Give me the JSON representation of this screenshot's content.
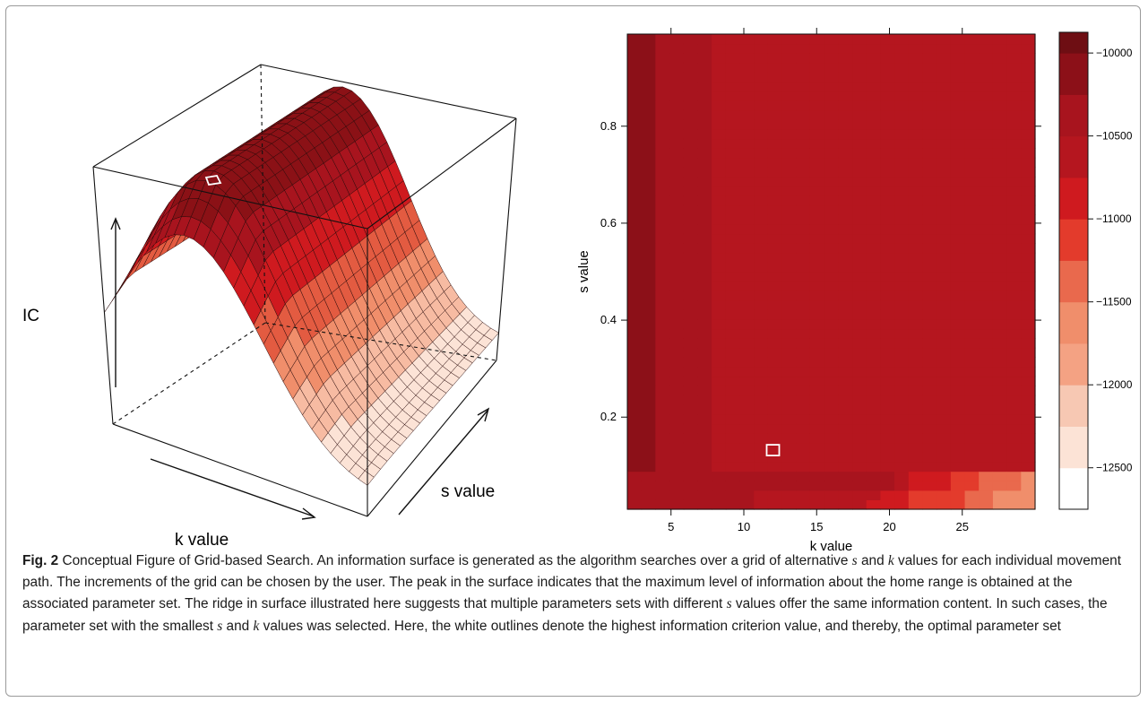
{
  "figure": {
    "label": "Fig. 2",
    "caption_title": "Conceptual Figure of Grid-based Search.",
    "caption_parts": [
      "An information surface is generated as the algorithm searches over a grid of alternative ",
      "s",
      " and ",
      "k",
      " values for each individual movement path. The increments of the grid can be chosen by the user. The peak in the surface indicates that the maximum level of information about the home range is obtained at the associated parameter set. The ridge in surface illustrated here suggests that multiple parameters sets with different ",
      "s",
      " values offer the same information content. In such cases, the parameter set with the smallest ",
      "s",
      " and ",
      "k",
      " values was selected. Here, the white outlines denote the highest information criterion value, and thereby, the optimal parameter set"
    ]
  },
  "surface_plot": {
    "z_label": "IC",
    "x_label": "k value",
    "y_label": "s value",
    "colors": [
      "#fce3d6",
      "#f7bba2",
      "#f08e6b",
      "#e35b41",
      "#cf1a1f",
      "#a8141e",
      "#8b1116"
    ]
  },
  "chart_data": {
    "type": "heatmap",
    "title": "",
    "xlabel": "k value",
    "ylabel": "s value",
    "xlim": [
      2,
      30
    ],
    "ylim": [
      0.01,
      0.99
    ],
    "x_ticks": [
      5,
      10,
      15,
      20,
      25
    ],
    "y_ticks": [
      0.2,
      0.4,
      0.6,
      0.8
    ],
    "x_tick_labels": [
      "5",
      "10",
      "15",
      "20",
      "25"
    ],
    "y_tick_labels": [
      "0.2",
      "0.4",
      "0.6",
      "0.8"
    ],
    "grid": false,
    "optimum": {
      "k": 12,
      "s": 0.13
    },
    "colorbar": {
      "levels": [
        -12750,
        -12500,
        -12250,
        -12000,
        -11750,
        -11500,
        -11250,
        -11000,
        -10750,
        -10500,
        -10250,
        -10000,
        -9875
      ],
      "colors": [
        "#ffffff",
        "#fce3d6",
        "#f7c8b3",
        "#f4a283",
        "#f08e6b",
        "#e9694d",
        "#e33b2c",
        "#cf1a1f",
        "#b5161f",
        "#a8141e",
        "#8c1018",
        "#6e0e13"
      ],
      "tick_values": [
        -12500,
        -12000,
        -11500,
        -11000,
        -10500,
        -10000
      ],
      "tick_labels": [
        "−12500",
        "−12000",
        "−11500",
        "−11000",
        "−10500",
        "−10000"
      ]
    },
    "column_bins_main": [
      6,
      6,
      5,
      5,
      5,
      5,
      4,
      4,
      4,
      4,
      4,
      4,
      4,
      4,
      4,
      4,
      4,
      4,
      4,
      4,
      4,
      4,
      4,
      4,
      4,
      4,
      4,
      4,
      4
    ],
    "column_bins": [
      [
        6,
        6,
        6,
        6,
        6,
        6,
        6,
        6,
        6,
        5,
        5,
        5,
        5,
        5,
        5,
        5,
        5,
        4,
        4,
        4,
        3,
        3,
        3,
        3,
        2,
        2,
        1,
        1,
        1
      ],
      [
        6,
        6,
        6,
        6,
        6,
        6,
        6,
        6,
        6,
        5,
        5,
        5,
        5,
        5,
        5,
        5,
        5,
        5,
        4,
        4,
        3,
        3,
        3,
        3,
        2,
        2,
        1,
        1,
        1
      ],
      [
        6,
        6,
        6,
        6,
        6,
        6,
        6,
        6,
        6,
        6,
        6,
        6,
        6,
        6,
        6,
        6,
        6,
        6,
        6,
        5,
        4,
        4,
        4,
        3,
        3,
        2,
        2,
        2,
        1
      ],
      [
        6,
        6,
        6,
        6,
        6,
        6,
        6,
        6,
        6,
        6,
        6,
        6,
        6,
        6,
        6,
        6,
        6,
        6,
        6,
        5,
        4,
        4,
        4,
        3,
        3,
        2,
        2,
        2,
        1
      ]
    ],
    "column_values_note": "rows listed for s = 0.01, 0.03, 0.05, 0.07; higher s uses column_bins_main (bin indices into colorbar.colors)"
  }
}
